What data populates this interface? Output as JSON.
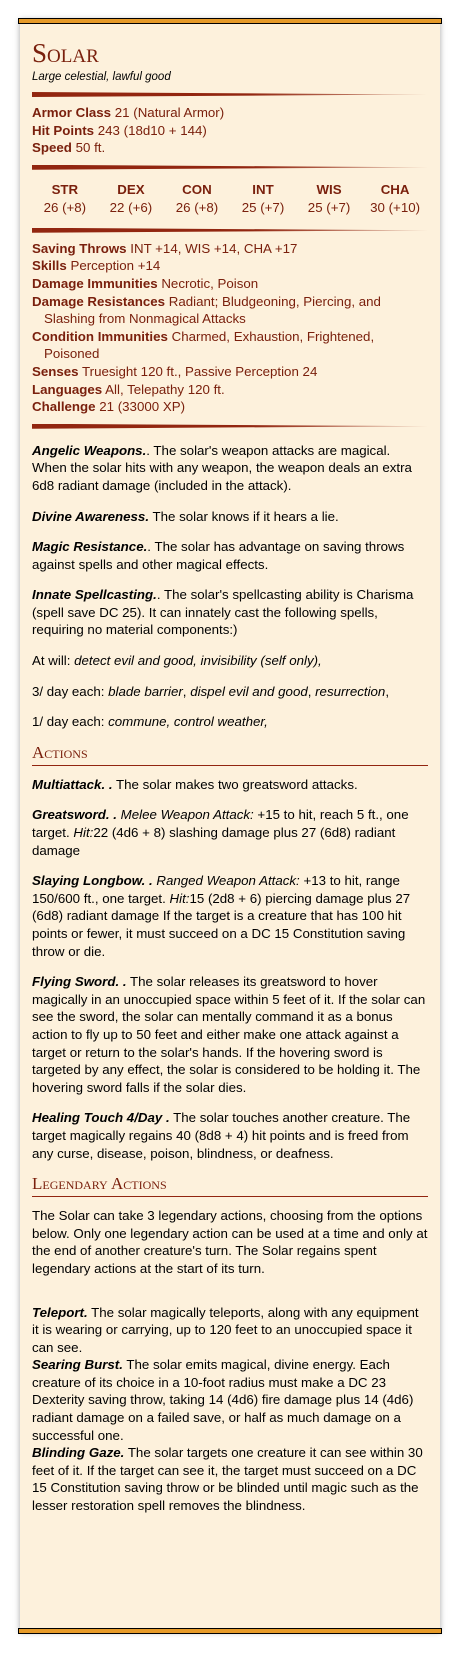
{
  "name": "Solar",
  "meta": "Large celestial, lawful good",
  "basics": [
    {
      "label": "Armor Class",
      "value": "21 (Natural Armor)"
    },
    {
      "label": "Hit Points",
      "value": "243 (18d10 + 144)"
    },
    {
      "label": "Speed",
      "value": "50 ft."
    }
  ],
  "abilities": [
    {
      "label": "STR",
      "value": "26 (+8)"
    },
    {
      "label": "DEX",
      "value": "22 (+6)"
    },
    {
      "label": "CON",
      "value": "26 (+8)"
    },
    {
      "label": "INT",
      "value": "25 (+7)"
    },
    {
      "label": "WIS",
      "value": "25 (+7)"
    },
    {
      "label": "CHA",
      "value": "30 (+10)"
    }
  ],
  "properties": [
    {
      "label": "Saving Throws",
      "value": "INT +14, WIS +14, CHA +17"
    },
    {
      "label": "Skills",
      "value": "Perception +14"
    },
    {
      "label": "Damage Immunities",
      "value": "Necrotic, Poison"
    },
    {
      "label": "Damage Resistances",
      "value": "Radiant; Bludgeoning, Piercing, and Slashing from Nonmagical Attacks"
    },
    {
      "label": "Condition Immunities",
      "value": "Charmed, Exhaustion, Frightened, Poisoned"
    },
    {
      "label": "Senses",
      "value": "Truesight 120 ft., Passive Perception 24"
    },
    {
      "label": "Languages",
      "value": "All, Telepathy 120 ft."
    },
    {
      "label": "Challenge",
      "value": "21 (33000 XP)"
    }
  ],
  "traits": [
    {
      "name": "Angelic Weapons.",
      "text": ". The solar's weapon attacks are magical. When the solar hits with any weapon, the weapon deals an extra 6d8 radiant damage (included in the attack)."
    },
    {
      "name": "Divine Awareness.",
      "text": " The solar knows if it hears a lie."
    },
    {
      "name": "Magic Resistance.",
      "text": ". The solar has advantage on saving throws against spells and other magical effects."
    },
    {
      "name": "Innate Spellcasting.",
      "text": ". The solar's spellcasting ability is Charisma (spell save DC 25). It can innately cast the following spells, requiring no material components:)"
    }
  ],
  "spells": [
    {
      "label": "At will: ",
      "list": "detect evil and good, invisibility (self only),"
    },
    {
      "label": "3/ day each: ",
      "list1": "blade barrier",
      "sep1": ", ",
      "list2": "dispel evil and good",
      "sep2": ", ",
      "list3": "resurrection",
      "end": ","
    },
    {
      "label": "1/ day each: ",
      "list": "commune, control weather,"
    }
  ],
  "actions_title": "Actions",
  "actions": [
    {
      "name": "Multiattack. .",
      "pre": "",
      "text": " The solar makes two greatsword attacks."
    },
    {
      "name": "Greatsword. .",
      "type": " Melee Weapon Attack:",
      "t1": " +15 to hit, reach 5 ft., one target. ",
      "hit": "Hit:",
      "t2": "22 (4d6 + 8) slashing damage plus 27 (6d8) radiant damage"
    },
    {
      "name": "Slaying Longbow. .",
      "type": " Ranged Weapon Attack:",
      "t1": " +13 to hit, range 150/600 ft., one target. ",
      "hit": "Hit:",
      "t2": "15 (2d8 + 6) piercing damage plus 27 (6d8) radiant damage If the target is a creature that has 100 hit points or fewer, it must succeed on a DC 15 Constitution saving throw or die."
    },
    {
      "name": "Flying Sword. .",
      "pre": "",
      "text": " The solar releases its greatsword to hover magically in an unoccupied space within 5 feet of it. If the solar can see the sword, the solar can mentally command it as a bonus action to fly up to 50 feet and either make one attack against a target or return to the solar's hands. If the hovering sword is targeted by any effect, the solar is considered to be holding it. The hovering sword falls if the solar dies."
    },
    {
      "name": "Healing Touch 4/Day .",
      "pre": "",
      "text": " The solar touches another creature. The target magically regains 40 (8d8 + 4) hit points and is freed from any curse, disease, poison, blindness, or deafness."
    }
  ],
  "legendary_title": "Legendary Actions",
  "legendary_intro": "The Solar can take 3 legendary actions, choosing from the options below. Only one legendary action can be used at a time and only at the end of another creature's turn. The Solar regains spent legendary actions at the start of its turn.",
  "legendary": [
    {
      "name": "Teleport.",
      "text": " The solar magically teleports, along with any equipment it is wearing or carrying, up to 120 feet to an unoccupied space it can see."
    },
    {
      "name": "Searing Burst.",
      "text": " The solar emits magical, divine energy. Each creature of its choice in a 10-foot radius must make a DC 23 Dexterity saving throw, taking 14 (4d6) fire damage plus 14 (4d6) radiant damage on a failed save, or half as much damage on a successful one."
    },
    {
      "name": "Blinding Gaze.",
      "text": " The solar targets one creature it can see within 30 feet of it. If the target can see it, the target must succeed on a DC 15 Constitution saving throw or be blinded until magic such as the lesser restoration spell removes the blindness."
    }
  ]
}
